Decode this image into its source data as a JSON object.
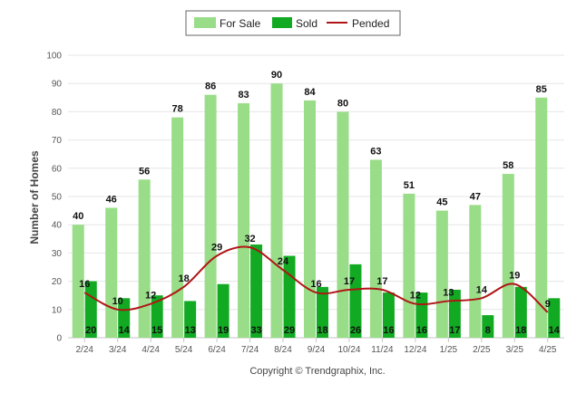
{
  "chart_data": {
    "type": "bar",
    "categories": [
      "2/24",
      "3/24",
      "4/24",
      "5/24",
      "6/24",
      "7/24",
      "8/24",
      "9/24",
      "10/24",
      "11/24",
      "12/24",
      "1/25",
      "2/25",
      "3/25",
      "4/25"
    ],
    "series": [
      {
        "name": "For Sale",
        "type": "bar",
        "color": "#99dd88",
        "values": [
          40,
          46,
          56,
          78,
          86,
          83,
          90,
          84,
          80,
          63,
          51,
          45,
          47,
          58,
          85
        ]
      },
      {
        "name": "Sold",
        "type": "bar",
        "color": "#11aa22",
        "values": [
          20,
          14,
          15,
          13,
          19,
          33,
          29,
          18,
          26,
          16,
          16,
          17,
          8,
          18,
          14
        ]
      },
      {
        "name": "Pended",
        "type": "line",
        "color": "#b01515",
        "values": [
          16,
          10,
          12,
          18,
          29,
          32,
          24,
          16,
          17,
          17,
          12,
          13,
          14,
          19,
          9
        ]
      }
    ],
    "ylabel": "Number of Homes",
    "ylim": [
      0,
      100
    ],
    "yticks": [
      0,
      10,
      20,
      30,
      40,
      50,
      60,
      70,
      80,
      90,
      100
    ],
    "grid": true,
    "legend": "top-center",
    "credit": "Copyright © Trendgraphix, Inc."
  }
}
